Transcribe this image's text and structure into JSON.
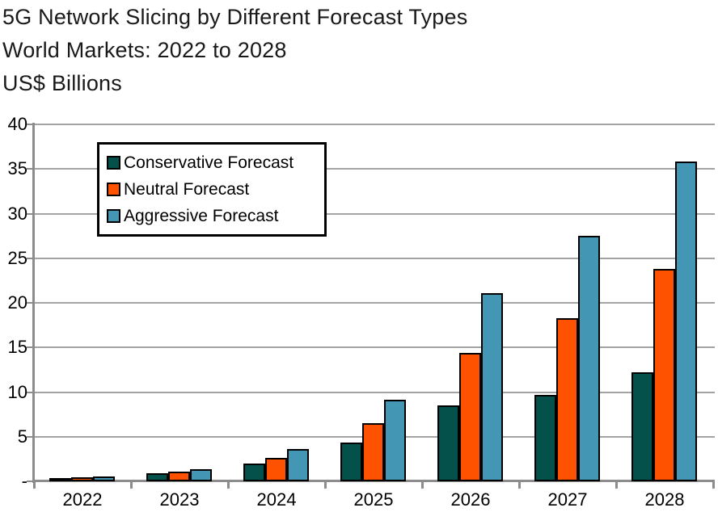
{
  "title": {
    "line1": "5G Network Slicing by Different Forecast Types",
    "line2": "World Markets: 2022 to 2028",
    "line3": "US$ Billions"
  },
  "chart_data": {
    "type": "bar",
    "title": "5G Network Slicing by Different Forecast Types",
    "subtitle": "World Markets: 2022 to 2028",
    "units": "US$ Billions",
    "categories": [
      "2022",
      "2023",
      "2024",
      "2025",
      "2026",
      "2027",
      "2028"
    ],
    "series": [
      {
        "name": "Conservative Forecast",
        "color": "#04504A",
        "values": [
          0.2,
          0.7,
          1.8,
          4.2,
          8.3,
          9.5,
          12.0
        ]
      },
      {
        "name": "Neutral Forecast",
        "color": "#FF5200",
        "values": [
          0.3,
          0.9,
          2.4,
          6.3,
          14.2,
          18.1,
          23.6
        ]
      },
      {
        "name": "Aggressive Forecast",
        "color": "#4497B4",
        "values": [
          0.4,
          1.2,
          3.4,
          9.0,
          20.9,
          27.3,
          35.7
        ]
      }
    ],
    "ylim": [
      0,
      40
    ],
    "ytick_step": 5,
    "ytick_labels": [
      "-",
      "5",
      "10",
      "15",
      "20",
      "25",
      "30",
      "35",
      "40"
    ],
    "grid": true,
    "legend_position": "upper-left-inside",
    "bar_border_color": "#000000",
    "gridline_color": "#A3A3A3",
    "axis_color": "#8C8C8C",
    "text_color": "#000000"
  }
}
